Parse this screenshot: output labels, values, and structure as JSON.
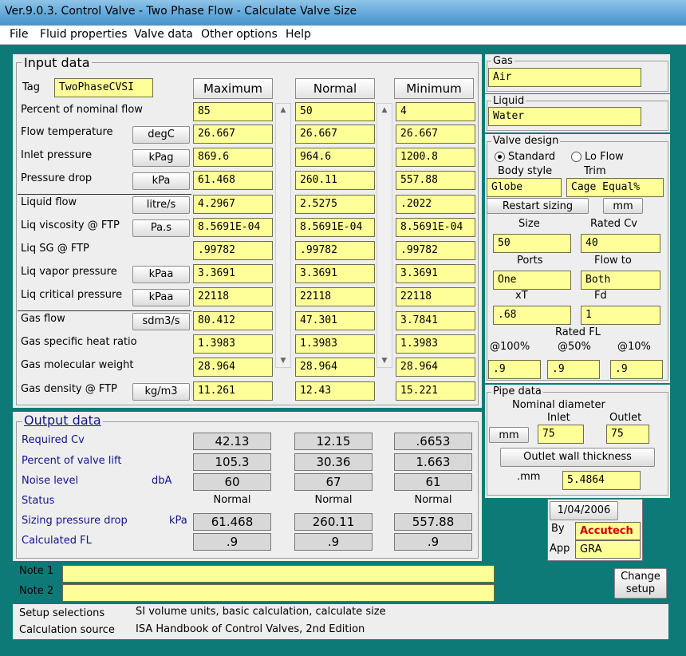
{
  "window": {
    "title": "Ver.9.0.3.  Control Valve - Two Phase Flow - Calculate Valve Size"
  },
  "menu": [
    "File",
    "Fluid properties",
    "Valve data",
    "Other options",
    "Help"
  ],
  "input": {
    "title": "Input data",
    "tag_label": "Tag",
    "tag_value": "TwoPhaseCVSI",
    "headers": {
      "max": "Maximum",
      "normal": "Normal",
      "min": "Minimum"
    },
    "rows": [
      {
        "label": "Percent of nominal flow",
        "unit": "",
        "max": "85",
        "normal": "50",
        "min": "4"
      },
      {
        "label": "Flow temperature",
        "unit": "degC",
        "max": "26.667",
        "normal": "26.667",
        "min": "26.667"
      },
      {
        "label": "Inlet pressure",
        "unit": "kPag",
        "max": "869.6",
        "normal": "964.6",
        "min": "1200.8"
      },
      {
        "label": "Pressure drop",
        "unit": "kPa",
        "max": "61.468",
        "normal": "260.11",
        "min": "557.88"
      },
      {
        "label": "Liquid flow",
        "unit": "litre/s",
        "max": "4.2967",
        "normal": "2.5275",
        "min": ".2022"
      },
      {
        "label": "Liq viscosity @ FTP",
        "unit": "Pa.s",
        "max": "8.5691E-04",
        "normal": "8.5691E-04",
        "min": "8.5691E-04"
      },
      {
        "label": "Liq SG @ FTP",
        "unit": "",
        "max": ".99782",
        "normal": ".99782",
        "min": ".99782"
      },
      {
        "label": "Liq vapor pressure",
        "unit": "kPaa",
        "max": "3.3691",
        "normal": "3.3691",
        "min": "3.3691"
      },
      {
        "label": "Liq critical pressure",
        "unit": "kPaa",
        "max": "22118",
        "normal": "22118",
        "min": "22118"
      },
      {
        "label": "Gas flow",
        "unit": "sdm3/s",
        "max": "80.412",
        "normal": "47.301",
        "min": "3.7841"
      },
      {
        "label": "Gas specific heat ratio",
        "unit": "",
        "max": "1.3983",
        "normal": "1.3983",
        "min": "1.3983"
      },
      {
        "label": "Gas molecular weight",
        "unit": "",
        "max": "28.964",
        "normal": "28.964",
        "min": "28.964"
      },
      {
        "label": "Gas density @ FTP",
        "unit": "kg/m3",
        "max": "11.261",
        "normal": "12.43",
        "min": "15.221"
      }
    ]
  },
  "output": {
    "title": "Output data",
    "rows": [
      {
        "label": "Required Cv",
        "unit": "",
        "max": "42.13",
        "normal": "12.15",
        "min": ".6653",
        "boxed": true
      },
      {
        "label": "Percent of valve lift",
        "unit": "",
        "max": "105.3",
        "normal": "30.36",
        "min": "1.663",
        "boxed": true
      },
      {
        "label": "Noise level",
        "unit": "dbA",
        "max": "60",
        "normal": "67",
        "min": "61",
        "boxed": true
      },
      {
        "label": "Status",
        "unit": "",
        "max": "Normal",
        "normal": "Normal",
        "min": "Normal",
        "boxed": false
      },
      {
        "label": "Sizing pressure drop",
        "unit": "kPa",
        "max": "61.468",
        "normal": "260.11",
        "min": "557.88",
        "boxed": true
      },
      {
        "label": "Calculated FL",
        "unit": "",
        "max": ".9",
        "normal": ".9",
        "min": ".9",
        "boxed": true
      }
    ]
  },
  "gas": {
    "title": "Gas",
    "value": "Air"
  },
  "liquid": {
    "title": "Liquid",
    "value": "Water"
  },
  "valve": {
    "title": "Valve design",
    "radio_standard": "Standard",
    "radio_lo_flow": "Lo Flow",
    "body_style_label": "Body style",
    "trim_label": "Trim",
    "body_style": "Globe",
    "trim": "Cage Equal%",
    "restart_sizing": "Restart sizing",
    "mm": "mm",
    "size_label": "Size",
    "rated_cv_label": "Rated Cv",
    "size": "50",
    "rated_cv": "40",
    "ports_label": "Ports",
    "flow_to_label": "Flow to",
    "ports": "One",
    "flow_to": "Both",
    "xt_label": "xT",
    "fd_label": "Fd",
    "xt": ".68",
    "fd": "1",
    "rated_fl_label": "Rated FL",
    "fl_100_label": "@100%",
    "fl_50_label": "@50%",
    "fl_10_label": "@10%",
    "fl_100": ".9",
    "fl_50": ".9",
    "fl_10": ".9"
  },
  "pipe": {
    "title": "Pipe data",
    "nominal_label": "Nominal diameter",
    "inlet_label": "Inlet",
    "outlet_label": "Outlet",
    "mm_button": "mm",
    "inlet": "75",
    "outlet": "75",
    "wall_button": "Outlet wall thickness",
    "wall_unit": ".mm",
    "wall": "5.4864"
  },
  "stamp": {
    "date": "1/04/2006",
    "by_label": "By",
    "by": "Accutech",
    "app_label": "App",
    "app": "GRA"
  },
  "notes": {
    "note1_label": "Note 1",
    "note2_label": "Note 2",
    "note1": "",
    "note2": "",
    "change_setup": "Change setup"
  },
  "footer": {
    "setup_label": "Setup selections",
    "setup_value": "SI volume units, basic calculation, calculate size",
    "source_label": "Calculation source",
    "source_value": "ISA Handbook of Control Valves, 2nd Edition"
  },
  "colors": {
    "field": "#ffff99",
    "frame": "#0d7a78",
    "output_text": "#14148c",
    "accent_red": "#cc0000"
  }
}
